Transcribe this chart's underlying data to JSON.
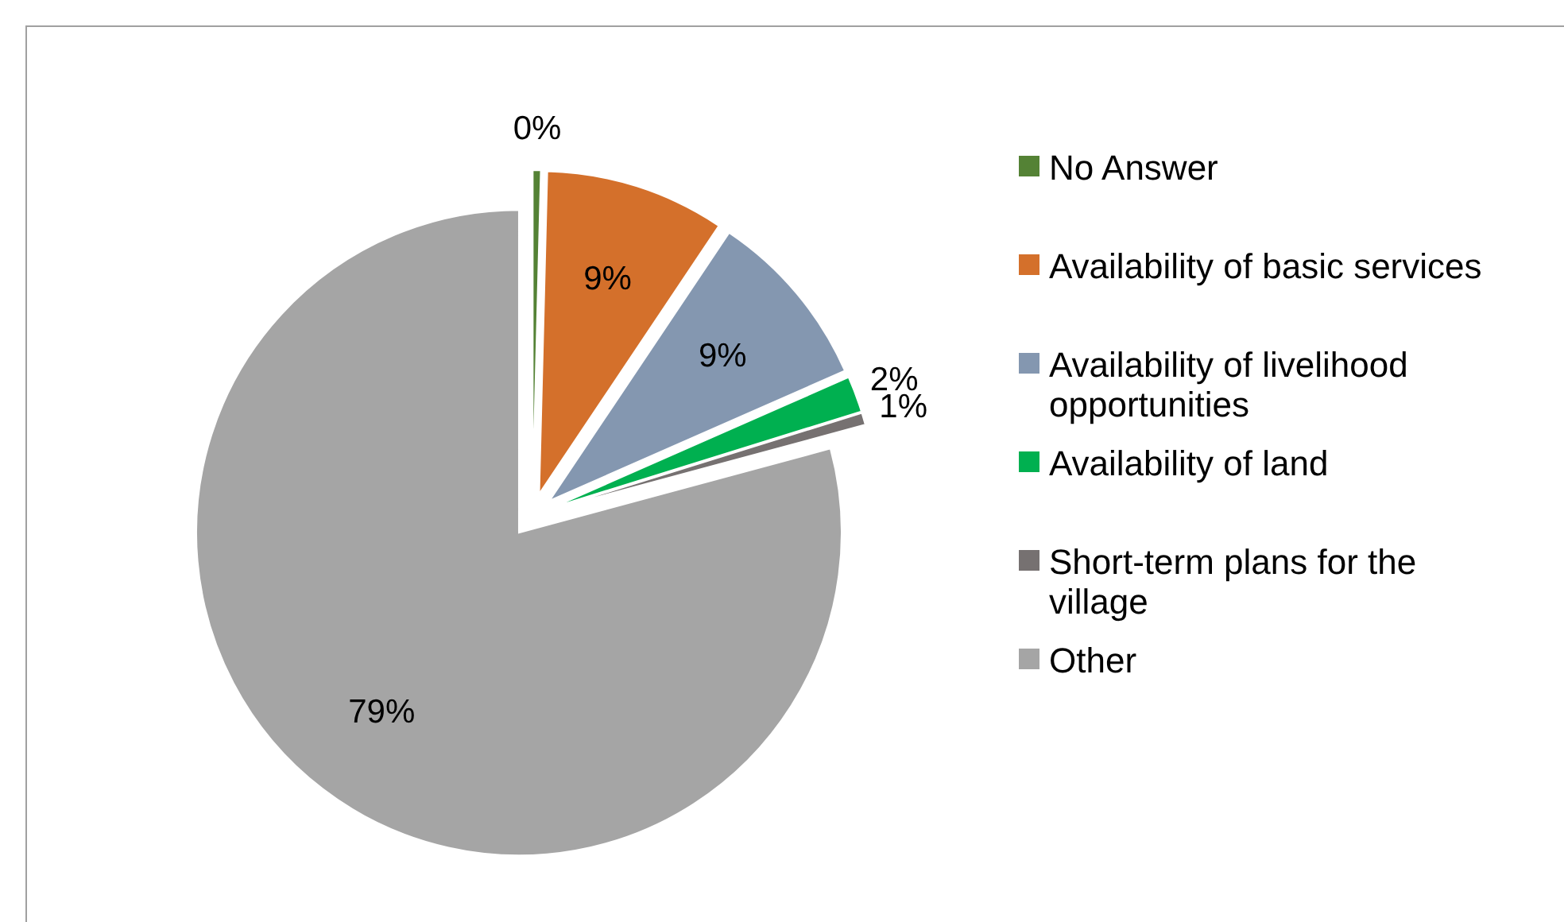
{
  "chart_data": {
    "type": "pie",
    "categories": [
      "No Answer",
      "Availability of basic services",
      "Availability of livelihood opportunities",
      "Availability of land",
      "Short-term plans for the village",
      "Other"
    ],
    "values": [
      0.4,
      9,
      9,
      1.8,
      0.6,
      79.2
    ],
    "value_labels": [
      "0%",
      "9%",
      "9%",
      "2%",
      "1%",
      "79%"
    ],
    "colors": [
      "#548235",
      "#d4702b",
      "#8497b0",
      "#00b050",
      "#767171",
      "#a5a5a5"
    ],
    "legend": "right"
  }
}
